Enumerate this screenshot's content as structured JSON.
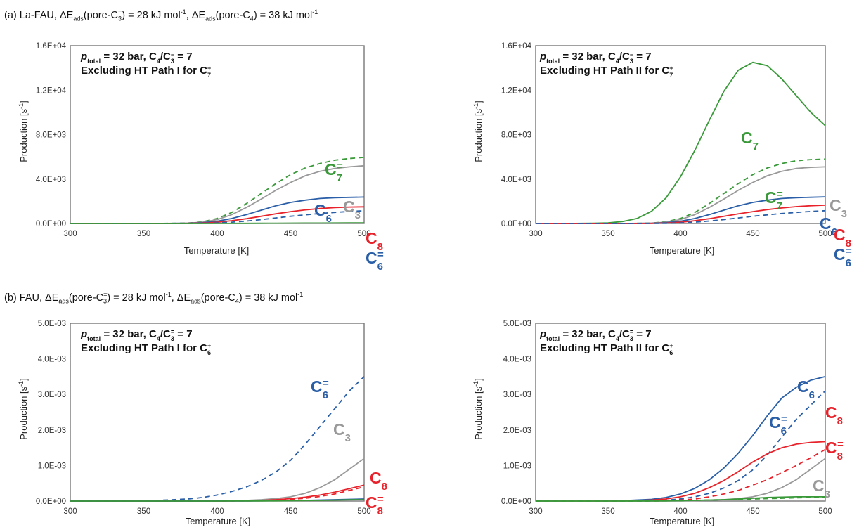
{
  "sections": [
    {
      "label": "(a) La-FAU, ΔE",
      "sub1": "ads",
      "mid1": "(pore-C",
      "sub2": "3",
      "sup2": "=",
      "mid2": ") = 28 kJ mol",
      "sup3": "-1",
      "mid3": ",  ΔE",
      "sub4": "ads",
      "mid4": "(pore-C",
      "sub5": "4",
      "mid5": ") = 38 kJ mol",
      "sup6": "-1"
    },
    {
      "label": "(b) FAU, ΔE",
      "sub1": "ads",
      "mid1": "(pore-C",
      "sub2": "3",
      "sup2": "=",
      "mid2": ") = 28 kJ mol",
      "sup3": "-1",
      "mid3": ",  ΔE",
      "sub4": "ads",
      "mid4": "(pore-C",
      "sub5": "4",
      "mid5": ") = 38 kJ mol",
      "sup6": "-1"
    }
  ],
  "colors": {
    "C3": "#999999",
    "C6": "#2a5fa8",
    "C7": "#3a9a3a",
    "C8": "#e8222a",
    "axis": "#777777"
  },
  "chart_data": [
    {
      "type": "line",
      "condition_line1": "p_total = 32 bar, C4/C3= = 7",
      "cond_p": "p",
      "cond_p_sub": "total",
      "cond_rest": " = 32 bar, C",
      "cond_c4sub": "4",
      "cond_slash": "/C",
      "cond_c3sub": "3",
      "cond_c3sup": "=",
      "cond_end": " = 7",
      "condition_line2": "Excluding HT Path I for C",
      "cond2_sub": "7",
      "cond2_sup": "+",
      "xlabel": "Temperature [K]",
      "ylabel": "Production [s",
      "ylabel_sup": "-1",
      "ylabel_end": "]",
      "xlim": [
        300,
        500
      ],
      "ylim": [
        0,
        16000
      ],
      "xticks": [
        "300",
        "350",
        "400",
        "450",
        "500"
      ],
      "yticks": [
        "0.0E+00",
        "4.0E+03",
        "8.0E+03",
        "1.2E+04",
        "1.6E+04"
      ],
      "x": [
        300,
        320,
        340,
        360,
        380,
        390,
        400,
        410,
        420,
        430,
        440,
        450,
        460,
        470,
        480,
        490,
        500
      ],
      "series": [
        {
          "key": "C7=",
          "color": "C7",
          "dashed": true,
          "values": [
            0,
            0,
            0,
            0,
            40,
            150,
            450,
            1000,
            1800,
            2700,
            3600,
            4400,
            5000,
            5400,
            5700,
            5850,
            5950
          ]
        },
        {
          "key": "C3",
          "color": "C3",
          "dashed": false,
          "values": [
            0,
            0,
            0,
            0,
            30,
            120,
            350,
            800,
            1450,
            2200,
            3000,
            3700,
            4300,
            4700,
            4950,
            5100,
            5200
          ]
        },
        {
          "key": "C6",
          "color": "C6",
          "dashed": false,
          "values": [
            0,
            0,
            0,
            0,
            20,
            70,
            200,
            450,
            800,
            1200,
            1600,
            1900,
            2100,
            2250,
            2320,
            2350,
            2380
          ]
        },
        {
          "key": "C8",
          "color": "C8",
          "dashed": false,
          "values": [
            0,
            0,
            0,
            0,
            10,
            40,
            110,
            250,
            430,
            650,
            870,
            1070,
            1230,
            1350,
            1430,
            1480,
            1500
          ]
        },
        {
          "key": "C6=",
          "color": "C6",
          "dashed": true,
          "values": [
            0,
            0,
            0,
            0,
            5,
            20,
            50,
            120,
            220,
            350,
            500,
            650,
            780,
            900,
            1000,
            1080,
            1150
          ]
        },
        {
          "key": "C7",
          "color": "C7",
          "dashed": false,
          "values": [
            0,
            0,
            0,
            0,
            0,
            0,
            5,
            10,
            15,
            20,
            25,
            30,
            35,
            40,
            45,
            48,
            50
          ]
        }
      ],
      "labels": [
        {
          "main": "C",
          "sub": "7",
          "sup": "=",
          "color": "C7"
        },
        {
          "main": "C",
          "sub": "3",
          "sup": "",
          "color": "C3"
        },
        {
          "main": "C",
          "sub": "6",
          "sup": "",
          "color": "C6"
        },
        {
          "main": "C",
          "sub": "8",
          "sup": "",
          "color": "C8"
        },
        {
          "main": "C",
          "sub": "6",
          "sup": "=",
          "color": "C6"
        }
      ]
    },
    {
      "type": "line",
      "cond_p": "p",
      "cond_p_sub": "total",
      "cond_rest": " = 32 bar, C",
      "cond_c4sub": "4",
      "cond_slash": "/C",
      "cond_c3sub": "3",
      "cond_c3sup": "=",
      "cond_end": " = 7",
      "condition_line2": "Excluding HT Path II for C",
      "cond2_sub": "7",
      "cond2_sup": "+",
      "xlabel": "Temperature [K]",
      "ylabel": "Production [s",
      "ylabel_sup": "-1",
      "ylabel_end": "]",
      "xlim": [
        300,
        500
      ],
      "ylim": [
        0,
        16000
      ],
      "xticks": [
        "300",
        "350",
        "400",
        "450",
        "500"
      ],
      "yticks": [
        "0.0E+00",
        "4.0E+03",
        "8.0E+03",
        "1.2E+04",
        "1.6E+04"
      ],
      "x": [
        300,
        320,
        340,
        350,
        360,
        370,
        380,
        390,
        400,
        410,
        420,
        430,
        440,
        450,
        460,
        470,
        480,
        490,
        500
      ],
      "series": [
        {
          "key": "C7",
          "color": "C7",
          "dashed": false,
          "values": [
            0,
            0,
            20,
            60,
            180,
            450,
            1100,
            2300,
            4200,
            6600,
            9300,
            11900,
            13800,
            14500,
            14200,
            13000,
            11500,
            10000,
            8800
          ]
        },
        {
          "key": "C7=",
          "color": "C7",
          "dashed": true,
          "values": [
            0,
            0,
            0,
            0,
            0,
            10,
            40,
            150,
            450,
            1000,
            1800,
            2700,
            3600,
            4400,
            5000,
            5400,
            5650,
            5750,
            5800
          ]
        },
        {
          "key": "C3",
          "color": "C3",
          "dashed": false,
          "values": [
            0,
            0,
            0,
            0,
            0,
            10,
            30,
            120,
            350,
            800,
            1450,
            2200,
            3000,
            3700,
            4300,
            4700,
            4950,
            5050,
            5100
          ]
        },
        {
          "key": "C6",
          "color": "C6",
          "dashed": false,
          "values": [
            0,
            0,
            0,
            0,
            0,
            5,
            20,
            70,
            200,
            450,
            800,
            1200,
            1600,
            1900,
            2100,
            2250,
            2320,
            2360,
            2400
          ]
        },
        {
          "key": "C8",
          "color": "C8",
          "dashed": false,
          "values": [
            0,
            0,
            0,
            0,
            0,
            3,
            10,
            40,
            110,
            250,
            430,
            650,
            870,
            1070,
            1250,
            1400,
            1520,
            1600,
            1650
          ]
        },
        {
          "key": "C6=",
          "color": "C6",
          "dashed": true,
          "values": [
            0,
            0,
            0,
            0,
            0,
            1,
            5,
            20,
            50,
            120,
            220,
            350,
            500,
            650,
            780,
            900,
            1000,
            1080,
            1150
          ]
        }
      ],
      "labels": [
        {
          "main": "C",
          "sub": "7",
          "sup": "",
          "color": "C7"
        },
        {
          "main": "C",
          "sub": "7",
          "sup": "=",
          "color": "C7"
        },
        {
          "main": "C",
          "sub": "3",
          "sup": "",
          "color": "C3"
        },
        {
          "main": "C",
          "sub": "6",
          "sup": "",
          "color": "C6"
        },
        {
          "main": "C",
          "sub": "8",
          "sup": "",
          "color": "C8"
        },
        {
          "main": "C",
          "sub": "6",
          "sup": "=",
          "color": "C6"
        }
      ]
    },
    {
      "type": "line",
      "cond_p": "p",
      "cond_p_sub": "total",
      "cond_rest": " = 32 bar, C",
      "cond_c4sub": "4",
      "cond_slash": "/C",
      "cond_c3sub": "3",
      "cond_c3sup": "=",
      "cond_end": " = 7",
      "condition_line2": "Excluding HT Path I for C",
      "cond2_sub": "6",
      "cond2_sup": "+",
      "xlabel": "Temperature [K]",
      "ylabel": "Production [s",
      "ylabel_sup": "-1",
      "ylabel_end": "]",
      "xlim": [
        300,
        500
      ],
      "ylim": [
        0,
        0.005
      ],
      "xticks": [
        "300",
        "350",
        "400",
        "450",
        "500"
      ],
      "yticks": [
        "0.0E+00",
        "1.0E-03",
        "2.0E-03",
        "3.0E-03",
        "4.0E-03",
        "5.0E-03"
      ],
      "x": [
        300,
        320,
        340,
        360,
        380,
        390,
        400,
        410,
        420,
        430,
        440,
        450,
        460,
        470,
        480,
        490,
        500
      ],
      "series": [
        {
          "key": "C6=",
          "color": "C6",
          "dashed": true,
          "values": [
            0,
            3e-06,
            8e-06,
            2e-05,
            6e-05,
            0.0001,
            0.00017,
            0.00027,
            0.0004,
            0.00058,
            0.00082,
            0.00115,
            0.0016,
            0.0021,
            0.0026,
            0.0031,
            0.0035
          ]
        },
        {
          "key": "C3",
          "color": "C3",
          "dashed": false,
          "values": [
            0,
            0,
            0,
            0,
            0,
            2e-06,
            5e-06,
            1e-05,
            2e-05,
            4e-05,
            7e-05,
            0.00012,
            0.00022,
            0.00038,
            0.0006,
            0.0009,
            0.0012
          ]
        },
        {
          "key": "C8",
          "color": "C8",
          "dashed": false,
          "values": [
            0,
            0,
            0,
            0,
            0,
            0,
            2e-06,
            5e-06,
            1e-05,
            2e-05,
            4e-05,
            7e-05,
            0.00011,
            0.00017,
            0.00025,
            0.00035,
            0.00045
          ]
        },
        {
          "key": "C8=",
          "color": "C8",
          "dashed": true,
          "values": [
            0,
            0,
            0,
            0,
            0,
            0,
            1e-06,
            3e-06,
            6e-06,
            1.2e-05,
            2.5e-05,
            5e-05,
            8e-05,
            0.00013,
            0.0002,
            0.0003,
            0.0004
          ]
        },
        {
          "key": "C6",
          "color": "C6",
          "dashed": false,
          "values": [
            0,
            0,
            0,
            0,
            0,
            0,
            1e-06,
            2e-06,
            4e-06,
            7e-06,
            1e-05,
            1.5e-05,
            2e-05,
            3e-05,
            4e-05,
            5e-05,
            6e-05
          ]
        },
        {
          "key": "C7",
          "color": "C7",
          "dashed": false,
          "values": [
            0,
            0,
            0,
            0,
            0,
            0,
            0,
            1e-06,
            2e-06,
            4e-06,
            6e-06,
            1e-05,
            1.5e-05,
            2e-05,
            2.8e-05,
            3.5e-05,
            4e-05
          ]
        }
      ],
      "labels": [
        {
          "main": "C",
          "sub": "6",
          "sup": "=",
          "color": "C6"
        },
        {
          "main": "C",
          "sub": "3",
          "sup": "",
          "color": "C3"
        },
        {
          "main": "C",
          "sub": "8",
          "sup": "",
          "color": "C8"
        },
        {
          "main": "C",
          "sub": "8",
          "sup": "=",
          "color": "C8"
        }
      ]
    },
    {
      "type": "line",
      "cond_p": "p",
      "cond_p_sub": "total",
      "cond_rest": " = 32 bar, C",
      "cond_c4sub": "4",
      "cond_slash": "/C",
      "cond_c3sub": "3",
      "cond_c3sup": "=",
      "cond_end": " = 7",
      "condition_line2": "Excluding HT Path II for C",
      "cond2_sub": "6",
      "cond2_sup": "+",
      "xlabel": "Temperature [K]",
      "ylabel": "Production [s",
      "ylabel_sup": "-1",
      "ylabel_end": "]",
      "xlim": [
        300,
        500
      ],
      "ylim": [
        0,
        0.005
      ],
      "xticks": [
        "300",
        "350",
        "400",
        "450",
        "500"
      ],
      "yticks": [
        "0.0E+00",
        "1.0E-03",
        "2.0E-03",
        "3.0E-03",
        "4.0E-03",
        "5.0E-03"
      ],
      "x": [
        300,
        320,
        340,
        360,
        380,
        390,
        400,
        410,
        420,
        430,
        440,
        450,
        460,
        470,
        480,
        490,
        500
      ],
      "series": [
        {
          "key": "C6",
          "color": "C6",
          "dashed": false,
          "values": [
            0,
            0,
            2e-06,
            1e-05,
            5e-05,
            0.0001,
            0.0002,
            0.00036,
            0.0006,
            0.00093,
            0.00135,
            0.00185,
            0.0024,
            0.0029,
            0.0032,
            0.0034,
            0.0035
          ]
        },
        {
          "key": "C6=",
          "color": "C6",
          "dashed": true,
          "values": [
            0,
            0,
            0,
            2e-06,
            1e-05,
            2.5e-05,
            6e-05,
            0.00012,
            0.00022,
            0.00037,
            0.00058,
            0.00088,
            0.0013,
            0.0018,
            0.0023,
            0.0027,
            0.0031
          ]
        },
        {
          "key": "C8",
          "color": "C8",
          "dashed": false,
          "values": [
            0,
            0,
            1e-06,
            5e-06,
            3e-05,
            6e-05,
            0.00012,
            0.00022,
            0.00038,
            0.00058,
            0.00083,
            0.0011,
            0.00133,
            0.0015,
            0.0016,
            0.00165,
            0.00167
          ]
        },
        {
          "key": "C8=",
          "color": "C8",
          "dashed": true,
          "values": [
            0,
            0,
            0,
            0,
            3e-06,
            1e-05,
            3e-05,
            6e-05,
            0.00012,
            0.0002,
            0.0003,
            0.00045,
            0.0006,
            0.0008,
            0.001,
            0.00122,
            0.00145
          ]
        },
        {
          "key": "C3",
          "color": "C3",
          "dashed": false,
          "values": [
            0,
            0,
            0,
            0,
            0,
            2e-06,
            5e-06,
            1e-05,
            2e-05,
            4e-05,
            7e-05,
            0.00012,
            0.00022,
            0.00038,
            0.0006,
            0.0009,
            0.0012
          ]
        },
        {
          "key": "C7",
          "color": "C7",
          "dashed": false,
          "values": [
            0,
            0,
            0,
            0,
            3e-06,
            6e-06,
            1e-05,
            2e-05,
            3e-05,
            4e-05,
            6e-05,
            8e-05,
            0.0001,
            0.00011,
            0.00012,
            0.00012,
            0.00012
          ]
        },
        {
          "key": "C7=",
          "color": "C7",
          "dashed": true,
          "values": [
            0,
            0,
            0,
            0,
            2e-06,
            5e-06,
            1e-05,
            2e-05,
            3e-05,
            4e-05,
            5e-05,
            6e-05,
            7e-05,
            8e-05,
            9e-05,
            0.0001,
            0.00011
          ]
        }
      ],
      "labels": [
        {
          "main": "C",
          "sub": "6",
          "sup": "",
          "color": "C6"
        },
        {
          "main": "C",
          "sub": "6",
          "sup": "=",
          "color": "C6"
        },
        {
          "main": "C",
          "sub": "8",
          "sup": "",
          "color": "C8"
        },
        {
          "main": "C",
          "sub": "8",
          "sup": "=",
          "color": "C8"
        },
        {
          "main": "C",
          "sub": "3",
          "sup": "",
          "color": "C3"
        }
      ]
    }
  ]
}
